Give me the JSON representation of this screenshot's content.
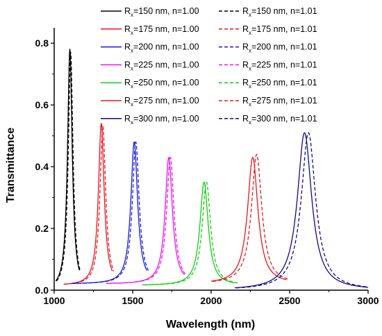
{
  "chart_data": {
    "type": "line",
    "title": "",
    "xlabel": "Wavelength (nm)",
    "ylabel": "Transmittance",
    "xlim": [
      1000,
      3000
    ],
    "ylim": [
      0,
      0.85
    ],
    "x_ticks": [
      1000,
      1500,
      2000,
      2500,
      3000
    ],
    "x_tick_labels": [
      "1000",
      "1500",
      "2000",
      "2500",
      "3000"
    ],
    "y_ticks": [
      0.0,
      0.2,
      0.4,
      0.6,
      0.8
    ],
    "y_tick_labels": [
      "0.0",
      "0.2",
      "0.4",
      "0.6",
      "0.8"
    ],
    "legend_position": "top-right",
    "grid": false,
    "series": [
      {
        "name": "Rx=150 nm, n=1.00",
        "label": {
          "sym": "R",
          "sub": "x",
          "rest": "=150 nm, n=1.00"
        },
        "color": "#000000",
        "dash": "solid",
        "peak_x": 1100,
        "peak_y": 0.78,
        "width": 18,
        "baseline": 0.0,
        "range": [
          1010,
          1160
        ]
      },
      {
        "name": "Rx=150 nm, n=1.01",
        "label": {
          "sym": "R",
          "sub": "x",
          "rest": "=150 nm, n=1.01"
        },
        "color": "#000000",
        "dash": "dashed",
        "peak_x": 1105,
        "peak_y": 0.77,
        "width": 18,
        "baseline": 0.0,
        "range": [
          1015,
          1165
        ]
      },
      {
        "name": "Rx=175 nm, n=1.00",
        "label": {
          "sym": "R",
          "sub": "x",
          "rest": "=175 nm, n=1.00"
        },
        "color": "#e8141b",
        "dash": "solid",
        "peak_x": 1300,
        "peak_y": 0.54,
        "width": 22,
        "baseline": 0.015,
        "range": [
          1060,
          1370
        ]
      },
      {
        "name": "Rx=175 nm, n=1.01",
        "label": {
          "sym": "R",
          "sub": "x",
          "rest": "=175 nm, n=1.01"
        },
        "color": "#e8141b",
        "dash": "dashed",
        "peak_x": 1310,
        "peak_y": 0.53,
        "width": 22,
        "baseline": 0.015,
        "range": [
          1065,
          1380
        ]
      },
      {
        "name": "Rx=200 nm, n=1.00",
        "label": {
          "sym": "R",
          "sub": "x",
          "rest": "=200 nm, n=1.00"
        },
        "color": "#1515d9",
        "dash": "solid",
        "peak_x": 1510,
        "peak_y": 0.48,
        "width": 26,
        "baseline": 0.02,
        "range": [
          1110,
          1590
        ]
      },
      {
        "name": "Rx=200 nm, n=1.01",
        "label": {
          "sym": "R",
          "sub": "x",
          "rest": "=200 nm, n=1.01"
        },
        "color": "#1515d9",
        "dash": "dashed",
        "peak_x": 1520,
        "peak_y": 0.48,
        "width": 26,
        "baseline": 0.02,
        "range": [
          1115,
          1600
        ]
      },
      {
        "name": "Rx=225 nm, n=1.00",
        "label": {
          "sym": "R",
          "sub": "x",
          "rest": "=225 nm, n=1.00"
        },
        "color": "#ee11ee",
        "dash": "solid",
        "peak_x": 1730,
        "peak_y": 0.43,
        "width": 28,
        "baseline": 0.02,
        "range": [
          1330,
          1830
        ]
      },
      {
        "name": "Rx=225 nm, n=1.01",
        "label": {
          "sym": "R",
          "sub": "x",
          "rest": "=225 nm, n=1.01"
        },
        "color": "#ee11ee",
        "dash": "dashed",
        "peak_x": 1740,
        "peak_y": 0.43,
        "width": 28,
        "baseline": 0.02,
        "range": [
          1340,
          1840
        ]
      },
      {
        "name": "Rx=250 nm, n=1.00",
        "label": {
          "sym": "R",
          "sub": "x",
          "rest": "=250 nm, n=1.00"
        },
        "color": "#11cc11",
        "dash": "solid",
        "peak_x": 1955,
        "peak_y": 0.35,
        "width": 32,
        "baseline": 0.015,
        "range": [
          1560,
          2150
        ]
      },
      {
        "name": "Rx=250 nm, n=1.01",
        "label": {
          "sym": "R",
          "sub": "x",
          "rest": "=250 nm, n=1.01"
        },
        "color": "#11cc11",
        "dash": "dashed",
        "peak_x": 1970,
        "peak_y": 0.35,
        "width": 32,
        "baseline": 0.015,
        "range": [
          1570,
          2170
        ]
      },
      {
        "name": "Rx=275 nm, n=1.00",
        "label": {
          "sym": "R",
          "sub": "x",
          "rest": "=275 nm, n=1.00"
        },
        "color": "#e8141b",
        "dash": "solid",
        "peak_x": 2265,
        "peak_y": 0.43,
        "width": 40,
        "baseline": 0.02,
        "range": [
          2000,
          2480
        ]
      },
      {
        "name": "Rx=275 nm, n=1.01",
        "label": {
          "sym": "R",
          "sub": "x",
          "rest": "=275 nm, n=1.01"
        },
        "color": "#e8141b",
        "dash": "dashed",
        "peak_x": 2290,
        "peak_y": 0.44,
        "width": 40,
        "baseline": 0.02,
        "range": [
          2010,
          2500
        ]
      },
      {
        "name": "Rx=300 nm, n=1.00",
        "label": {
          "sym": "R",
          "sub": "x",
          "rest": "=300 nm, n=1.00"
        },
        "color": "#0a0a8a",
        "dash": "solid",
        "peak_x": 2595,
        "peak_y": 0.51,
        "width": 55,
        "baseline": 0.0,
        "range": [
          2150,
          3000
        ]
      },
      {
        "name": "Rx=300 nm, n=1.01",
        "label": {
          "sym": "R",
          "sub": "x",
          "rest": "=300 nm, n=1.01"
        },
        "color": "#0a0a8a",
        "dash": "dashed",
        "peak_x": 2620,
        "peak_y": 0.51,
        "width": 55,
        "baseline": 0.0,
        "range": [
          2160,
          3000
        ]
      }
    ]
  }
}
